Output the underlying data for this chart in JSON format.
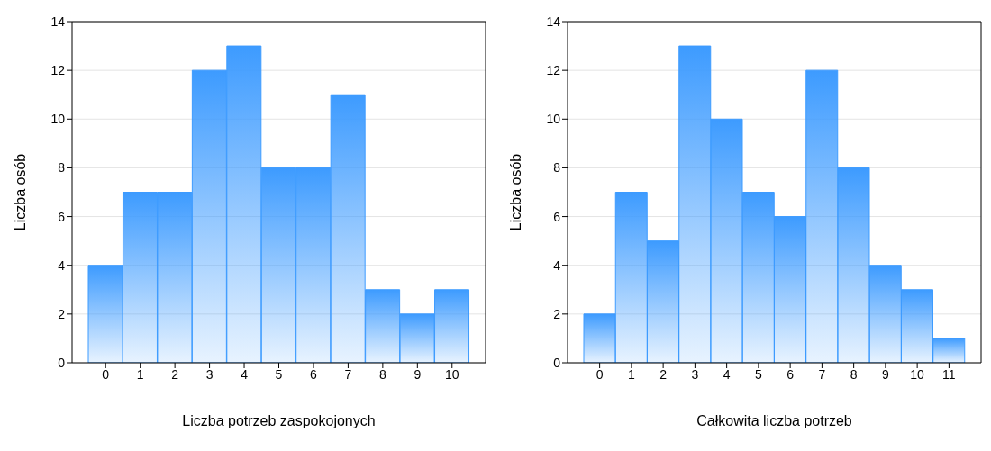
{
  "chart_data": [
    {
      "type": "bar",
      "xlabel": "Liczba potrzeb zaspokojonych",
      "ylabel": "Liczba osób",
      "categories": [
        "0",
        "1",
        "2",
        "3",
        "4",
        "5",
        "6",
        "7",
        "8",
        "9",
        "10"
      ],
      "values": [
        4,
        7,
        7,
        12,
        13,
        8,
        8,
        11,
        3,
        2,
        3
      ],
      "color": "#3d9bff",
      "ylim": [
        0,
        14
      ],
      "yticks": [
        0,
        2,
        4,
        6,
        8,
        10,
        12,
        14
      ],
      "grid": "y"
    },
    {
      "type": "bar",
      "xlabel": "Całkowita liczba potrzeb",
      "ylabel": "Liczba osób",
      "categories": [
        "0",
        "1",
        "2",
        "3",
        "4",
        "5",
        "6",
        "7",
        "8",
        "9",
        "10",
        "11"
      ],
      "values": [
        2,
        7,
        5,
        13,
        10,
        7,
        6,
        12,
        8,
        4,
        3,
        1
      ],
      "color": "#3d9bff",
      "ylim": [
        0,
        14
      ],
      "yticks": [
        0,
        2,
        4,
        6,
        8,
        10,
        12,
        14
      ],
      "grid": "y"
    }
  ]
}
